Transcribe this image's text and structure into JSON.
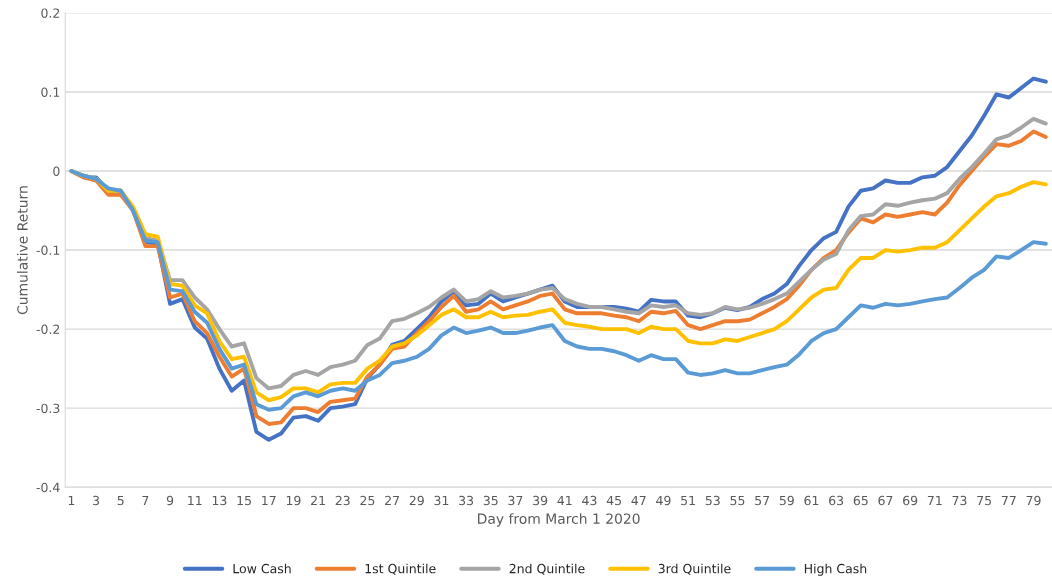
{
  "chart_data": {
    "type": "line",
    "xlabel": "Day from March 1 2020",
    "ylabel": "Cumulative Return",
    "categories": [
      "1",
      null,
      "3",
      null,
      "5",
      null,
      "7",
      null,
      "9",
      null,
      "11",
      null,
      "13",
      null,
      "15",
      null,
      "17",
      null,
      "19",
      null,
      "21",
      null,
      "23",
      null,
      "25",
      null,
      "27",
      null,
      "29",
      null,
      "31",
      null,
      "33",
      null,
      "35",
      null,
      "37",
      null,
      "39",
      null,
      "41",
      null,
      "43",
      null,
      "45",
      null,
      "47",
      null,
      "49",
      null,
      "51",
      null,
      "53",
      null,
      "55",
      null,
      "57",
      null,
      "59",
      null,
      "61",
      null,
      "63",
      null,
      "65",
      null,
      "67",
      null,
      "69",
      null,
      "71",
      null,
      "73",
      null,
      "75",
      null,
      "77",
      null,
      "79",
      null
    ],
    "series": [
      {
        "name": "Low Cash",
        "color": "#4472c4",
        "values": [
          0,
          -0.008,
          -0.008,
          -0.025,
          -0.025,
          -0.05,
          -0.09,
          -0.092,
          -0.168,
          -0.162,
          -0.198,
          -0.212,
          -0.25,
          -0.278,
          -0.265,
          -0.33,
          -0.34,
          -0.332,
          -0.312,
          -0.31,
          -0.316,
          -0.3,
          -0.298,
          -0.295,
          -0.262,
          -0.245,
          -0.22,
          -0.215,
          -0.2,
          -0.185,
          -0.165,
          -0.152,
          -0.17,
          -0.168,
          -0.155,
          -0.165,
          -0.16,
          -0.155,
          -0.15,
          -0.145,
          -0.165,
          -0.172,
          -0.172,
          -0.172,
          -0.172,
          -0.174,
          -0.178,
          -0.163,
          -0.165,
          -0.165,
          -0.183,
          -0.185,
          -0.18,
          -0.173,
          -0.176,
          -0.172,
          -0.162,
          -0.155,
          -0.143,
          -0.12,
          -0.1,
          -0.085,
          -0.077,
          -0.045,
          -0.025,
          -0.022,
          -0.012,
          -0.015,
          -0.015,
          -0.008,
          -0.006,
          0.005,
          0.025,
          0.045,
          0.07,
          0.097,
          0.093,
          0.105,
          0.117,
          0.113
        ]
      },
      {
        "name": "1st Quintile",
        "color": "#ed7d31",
        "values": [
          0,
          -0.008,
          -0.012,
          -0.03,
          -0.03,
          -0.05,
          -0.095,
          -0.095,
          -0.16,
          -0.155,
          -0.19,
          -0.205,
          -0.235,
          -0.26,
          -0.25,
          -0.31,
          -0.32,
          -0.318,
          -0.3,
          -0.3,
          -0.305,
          -0.292,
          -0.29,
          -0.288,
          -0.26,
          -0.245,
          -0.225,
          -0.222,
          -0.205,
          -0.19,
          -0.172,
          -0.158,
          -0.178,
          -0.175,
          -0.165,
          -0.175,
          -0.17,
          -0.165,
          -0.158,
          -0.155,
          -0.175,
          -0.18,
          -0.18,
          -0.18,
          -0.183,
          -0.185,
          -0.19,
          -0.178,
          -0.18,
          -0.177,
          -0.195,
          -0.2,
          -0.195,
          -0.19,
          -0.19,
          -0.188,
          -0.18,
          -0.172,
          -0.162,
          -0.145,
          -0.125,
          -0.11,
          -0.1,
          -0.078,
          -0.06,
          -0.065,
          -0.055,
          -0.058,
          -0.055,
          -0.052,
          -0.055,
          -0.04,
          -0.018,
          0,
          0.018,
          0.034,
          0.032,
          0.038,
          0.05,
          0.043
        ]
      },
      {
        "name": "2nd Quintile",
        "color": "#a5a5a5",
        "values": [
          0,
          -0.006,
          -0.01,
          -0.025,
          -0.025,
          -0.05,
          -0.085,
          -0.088,
          -0.138,
          -0.138,
          -0.16,
          -0.175,
          -0.2,
          -0.222,
          -0.218,
          -0.262,
          -0.275,
          -0.272,
          -0.258,
          -0.253,
          -0.258,
          -0.248,
          -0.245,
          -0.24,
          -0.22,
          -0.212,
          -0.19,
          -0.187,
          -0.18,
          -0.172,
          -0.16,
          -0.15,
          -0.165,
          -0.162,
          -0.152,
          -0.16,
          -0.158,
          -0.155,
          -0.15,
          -0.148,
          -0.162,
          -0.168,
          -0.172,
          -0.172,
          -0.175,
          -0.178,
          -0.18,
          -0.17,
          -0.172,
          -0.17,
          -0.18,
          -0.182,
          -0.18,
          -0.172,
          -0.175,
          -0.173,
          -0.168,
          -0.162,
          -0.155,
          -0.14,
          -0.125,
          -0.112,
          -0.105,
          -0.075,
          -0.057,
          -0.055,
          -0.042,
          -0.044,
          -0.04,
          -0.037,
          -0.035,
          -0.028,
          -0.01,
          0.005,
          0.022,
          0.04,
          0.045,
          0.055,
          0.066,
          0.06
        ]
      },
      {
        "name": "3rd Quintile",
        "color": "#ffc000",
        "values": [
          0,
          -0.006,
          -0.01,
          -0.025,
          -0.025,
          -0.045,
          -0.08,
          -0.083,
          -0.143,
          -0.145,
          -0.17,
          -0.18,
          -0.215,
          -0.238,
          -0.235,
          -0.28,
          -0.29,
          -0.286,
          -0.275,
          -0.275,
          -0.28,
          -0.27,
          -0.268,
          -0.268,
          -0.25,
          -0.24,
          -0.222,
          -0.218,
          -0.208,
          -0.195,
          -0.182,
          -0.175,
          -0.185,
          -0.185,
          -0.178,
          -0.185,
          -0.183,
          -0.182,
          -0.178,
          -0.175,
          -0.192,
          -0.195,
          -0.197,
          -0.2,
          -0.2,
          -0.2,
          -0.205,
          -0.197,
          -0.2,
          -0.2,
          -0.215,
          -0.218,
          -0.218,
          -0.213,
          -0.215,
          -0.21,
          -0.205,
          -0.2,
          -0.19,
          -0.175,
          -0.16,
          -0.15,
          -0.148,
          -0.125,
          -0.11,
          -0.11,
          -0.1,
          -0.102,
          -0.1,
          -0.097,
          -0.097,
          -0.09,
          -0.075,
          -0.06,
          -0.045,
          -0.032,
          -0.028,
          -0.02,
          -0.014,
          -0.017
        ]
      },
      {
        "name": "High Cash",
        "color": "#5b9bd5",
        "values": [
          0,
          -0.006,
          -0.01,
          -0.022,
          -0.025,
          -0.05,
          -0.088,
          -0.09,
          -0.15,
          -0.152,
          -0.178,
          -0.192,
          -0.225,
          -0.25,
          -0.245,
          -0.295,
          -0.302,
          -0.3,
          -0.285,
          -0.28,
          -0.285,
          -0.278,
          -0.275,
          -0.278,
          -0.265,
          -0.258,
          -0.243,
          -0.24,
          -0.235,
          -0.225,
          -0.208,
          -0.198,
          -0.205,
          -0.202,
          -0.198,
          -0.205,
          -0.205,
          -0.202,
          -0.198,
          -0.195,
          -0.215,
          -0.222,
          -0.225,
          -0.225,
          -0.228,
          -0.233,
          -0.24,
          -0.233,
          -0.238,
          -0.238,
          -0.255,
          -0.258,
          -0.256,
          -0.252,
          -0.256,
          -0.256,
          -0.252,
          -0.248,
          -0.245,
          -0.232,
          -0.215,
          -0.205,
          -0.2,
          -0.185,
          -0.17,
          -0.173,
          -0.168,
          -0.17,
          -0.168,
          -0.165,
          -0.162,
          -0.16,
          -0.148,
          -0.135,
          -0.125,
          -0.108,
          -0.11,
          -0.1,
          -0.09,
          -0.092
        ]
      }
    ],
    "ylim": [
      -0.4,
      0.2
    ],
    "yticks": [
      {
        "value": -0.4,
        "label": "-0.4"
      },
      {
        "value": -0.3,
        "label": "-0.3"
      },
      {
        "value": -0.2,
        "label": "-0.2"
      },
      {
        "value": -0.1,
        "label": "-0.1"
      },
      0,
      0.1,
      0.2
    ],
    "grid": "y",
    "legend": "bottom",
    "marker": "none",
    "line_style": "solid"
  }
}
